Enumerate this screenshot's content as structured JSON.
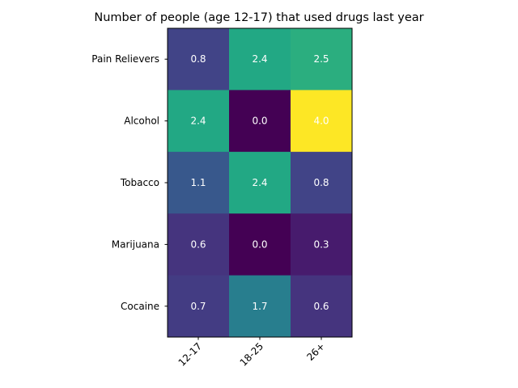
{
  "chart_data": {
    "type": "heatmap",
    "title": "Number of people (age 12-17) that used drugs last year",
    "x_categories": [
      "12-17",
      "18-25",
      "26+"
    ],
    "y_categories": [
      "Pain Relievers",
      "Alcohol",
      "Tobacco",
      "Marijuana",
      "Cocaine"
    ],
    "values": [
      [
        0.8,
        2.4,
        2.5
      ],
      [
        2.4,
        0.0,
        4.0
      ],
      [
        1.1,
        2.4,
        0.8
      ],
      [
        0.6,
        0.0,
        0.3
      ],
      [
        0.7,
        1.7,
        0.6
      ]
    ],
    "value_labels": [
      [
        "0.8",
        "2.4",
        "2.5"
      ],
      [
        "2.4",
        "0.0",
        "4.0"
      ],
      [
        "1.1",
        "2.4",
        "0.8"
      ],
      [
        "0.6",
        "0.0",
        "0.3"
      ],
      [
        "0.7",
        "1.7",
        "0.6"
      ]
    ],
    "colormap": "viridis",
    "vmin": 0.0,
    "vmax": 4.0,
    "xlabel": "",
    "ylabel": "",
    "x_tick_rotation": 45,
    "grid": false,
    "colorbar": false
  }
}
